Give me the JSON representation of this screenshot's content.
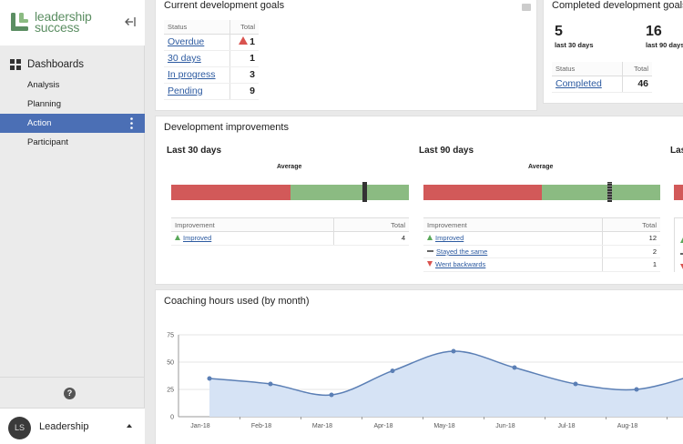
{
  "sidebar": {
    "logo_line1": "leadership",
    "logo_line2": "success",
    "section": "Dashboards",
    "items": [
      "Analysis",
      "Planning",
      "Action",
      "Participant"
    ],
    "active_index": 2,
    "help_icon": "question-circle-icon",
    "user": {
      "initials": "LS",
      "name": "Leadership"
    }
  },
  "colors": {
    "accent": "#4b6fb5",
    "logo": "#5b8e62",
    "bad": "#d25959",
    "good": "#8bbb82",
    "link": "#2c5aa0"
  },
  "current_goals": {
    "title": "Current development goals",
    "col_status": "Status",
    "col_total": "Total",
    "rows": [
      {
        "label": "Overdue",
        "total": "1",
        "warning": true
      },
      {
        "label": "30 days",
        "total": "1"
      },
      {
        "label": "In progress",
        "total": "3"
      },
      {
        "label": "Pending",
        "total": "9"
      }
    ]
  },
  "completed_goals": {
    "title": "Completed development goals",
    "stats": [
      {
        "value": "5",
        "label": "last 30 days"
      },
      {
        "value": "16",
        "label": "last 90 days"
      }
    ],
    "col_status": "Status",
    "col_total": "Total",
    "rows": [
      {
        "label": "Completed",
        "total": "46"
      }
    ]
  },
  "dev_improvements": {
    "title": "Development improvements",
    "average_label": "Average",
    "col_improvement": "Improvement",
    "col_total": "Total",
    "periods": [
      {
        "title": "Last 30 days",
        "bad_fraction": 0.5,
        "average_fraction": 0.81,
        "rows": [
          {
            "label": "Improved",
            "total": "4",
            "kind": "up"
          }
        ]
      },
      {
        "title": "Last 90 days",
        "bad_fraction": 0.5,
        "average_fraction": 0.79,
        "rows": [
          {
            "label": "Improved",
            "total": "12",
            "kind": "up"
          },
          {
            "label": "Stayed the same",
            "total": "2",
            "kind": "same"
          },
          {
            "label": "Went backwards",
            "total": "1",
            "kind": "down"
          }
        ]
      },
      {
        "title": "Las"
      }
    ]
  },
  "coaching": {
    "title": "Coaching hours used (by month)"
  },
  "chart_data": {
    "type": "area",
    "title": "Coaching hours used (by month)",
    "categories": [
      "Jan-18",
      "Feb-18",
      "Mar-18",
      "Apr-18",
      "May-18",
      "Jun-18",
      "Jul-18",
      "Aug-18"
    ],
    "values": [
      35,
      30,
      20,
      42,
      60,
      45,
      30,
      25
    ],
    "y_ticks": [
      "0",
      "25",
      "50",
      "75"
    ],
    "ylim": [
      0,
      75
    ],
    "grid": true,
    "line_color": "#5b7fb5",
    "fill_color": "#d6e3f5"
  }
}
